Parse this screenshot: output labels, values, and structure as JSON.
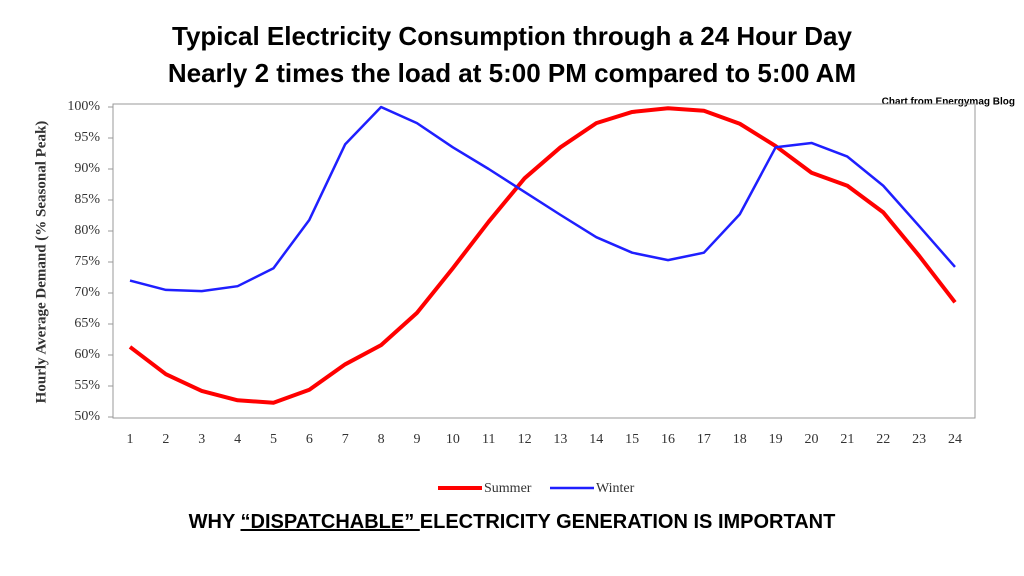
{
  "chart_data": {
    "type": "line",
    "title": "Typical Electricity Consumption through a 24 Hour Day",
    "subtitle": "Nearly 2 times the load at 5:00 PM compared to 5:00 AM",
    "source": "Chart from Energymag Blog",
    "y_label": "Hourly Average Demand (% Seasonal Peak)",
    "categories": [
      1,
      2,
      3,
      4,
      5,
      6,
      7,
      8,
      9,
      10,
      11,
      12,
      13,
      14,
      15,
      16,
      17,
      18,
      19,
      20,
      21,
      22,
      23,
      24
    ],
    "series": [
      {
        "name": "Summer",
        "color": "#ff0000",
        "values": [
          61.3,
          56.9,
          54.2,
          52.7,
          52.3,
          54.4,
          58.5,
          61.6,
          66.8,
          74,
          81.5,
          88.5,
          93.5,
          97.4,
          99.2,
          99.8,
          99.4,
          97.3,
          93.7,
          89.4,
          87.3,
          83,
          76,
          68.5
        ]
      },
      {
        "name": "Winter",
        "color": "#1f1fff",
        "values": [
          72,
          70.5,
          70.3,
          71.1,
          74,
          81.8,
          94,
          100,
          97.4,
          93.5,
          90,
          86.3,
          82.6,
          79,
          76.5,
          75.3,
          76.5,
          82.7,
          93.5,
          94.2,
          92,
          87.3,
          80.8,
          74.2
        ]
      }
    ],
    "ylim": [
      50,
      100
    ],
    "yticks": [
      {
        "value": 50,
        "label": "50%"
      },
      {
        "value": 55,
        "label": "55%"
      },
      {
        "value": 60,
        "label": "60%"
      },
      {
        "value": 65,
        "label": "65%"
      },
      {
        "value": 70,
        "label": "70%"
      },
      {
        "value": 75,
        "label": "75%"
      },
      {
        "value": 80,
        "label": "80%"
      },
      {
        "value": 85,
        "label": "85%"
      },
      {
        "value": 90,
        "label": "90%"
      },
      {
        "value": 95,
        "label": "95%"
      },
      {
        "value": 100,
        "label": "100%"
      }
    ],
    "grid": false,
    "legend": "bottom"
  },
  "footer": {
    "parts": [
      "WHY ",
      "“DISPATCHABLE” ",
      "ELECTRICITY GENERATION IS IMPORTANT"
    ]
  }
}
